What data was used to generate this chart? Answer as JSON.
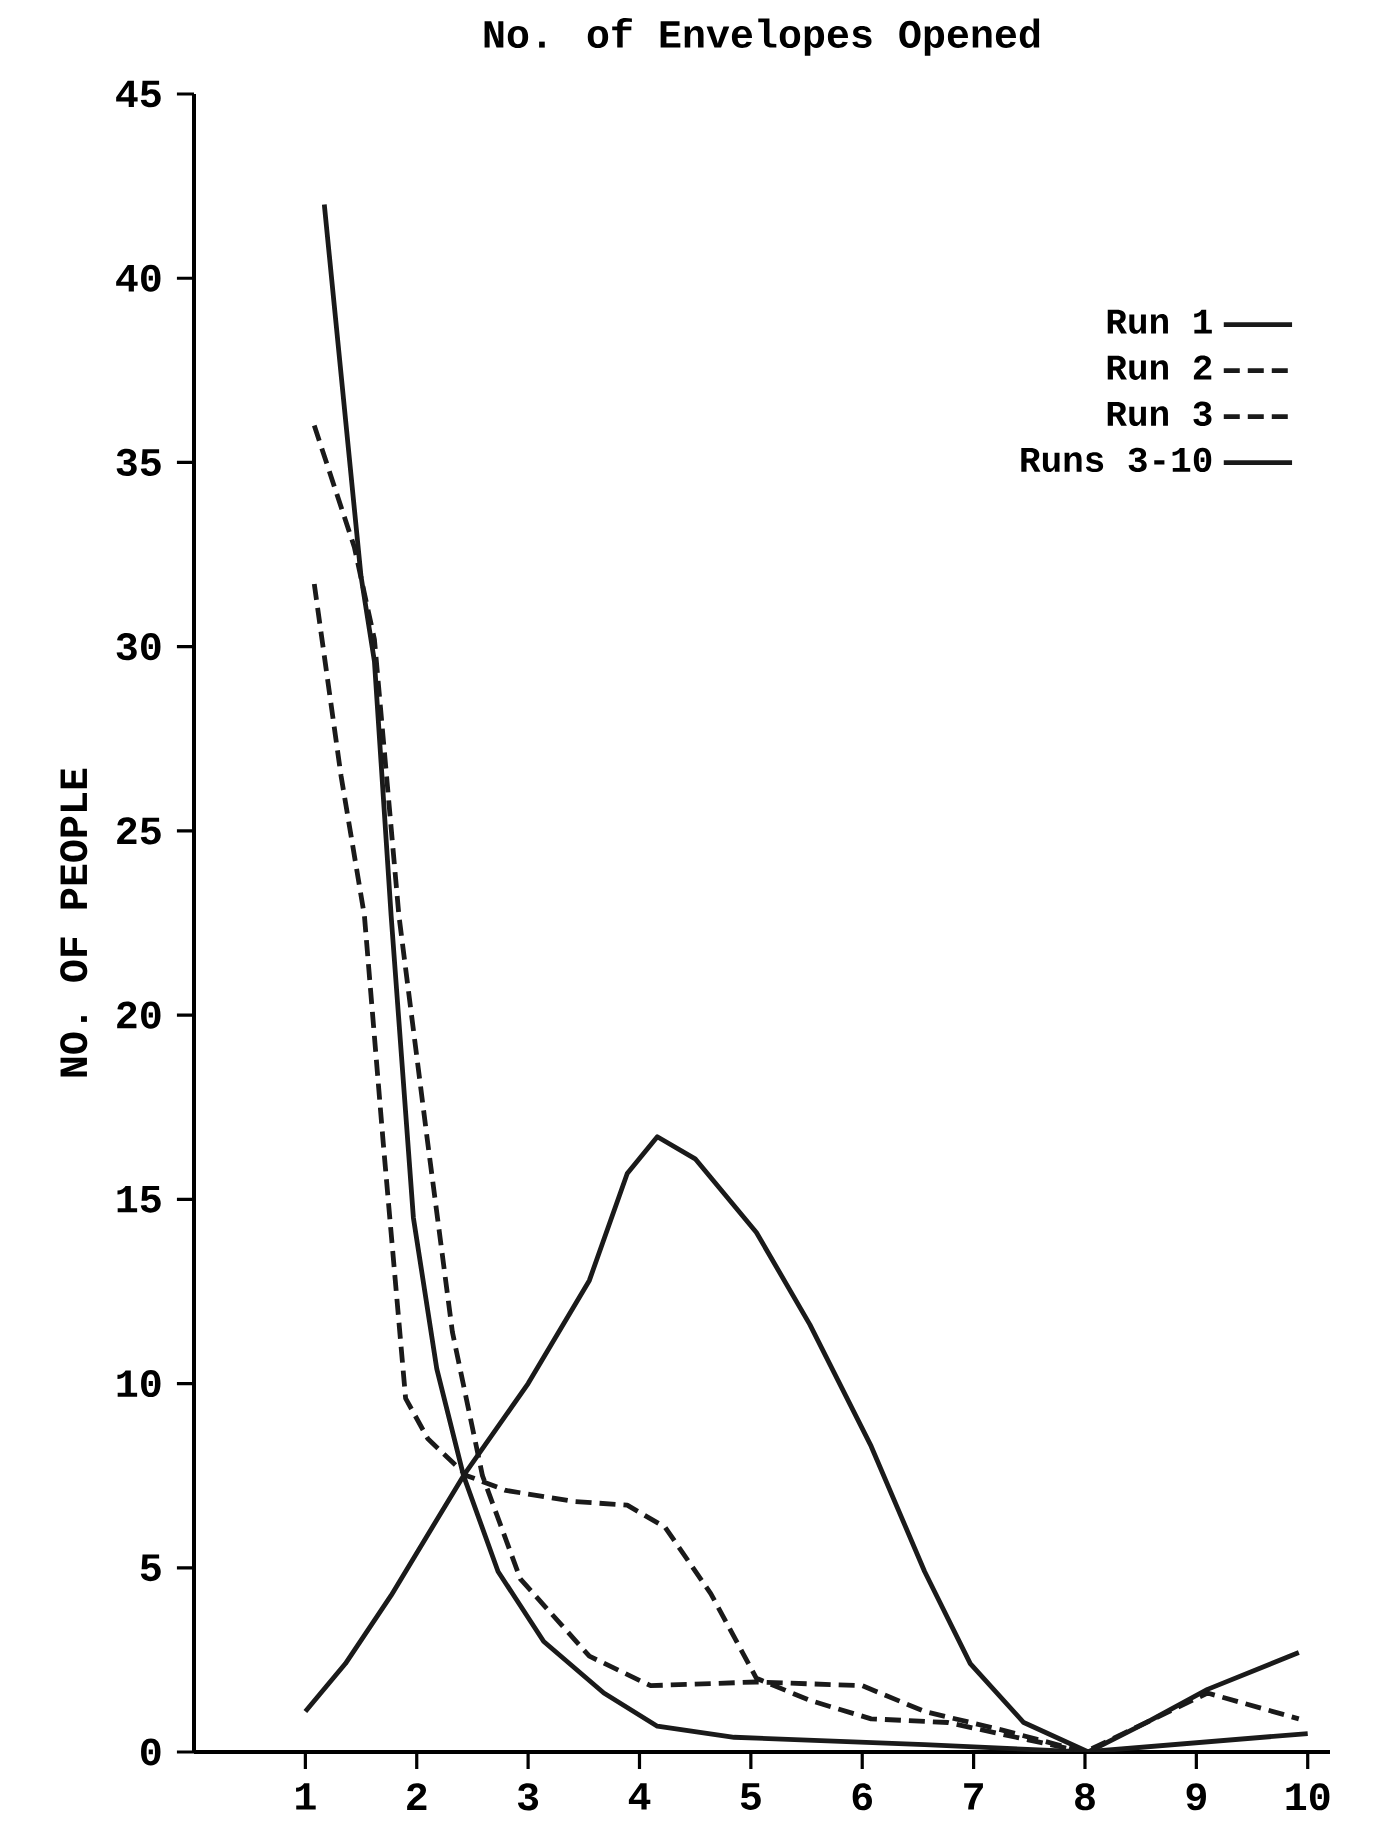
{
  "chart_data": {
    "type": "line",
    "title": "No. of Envelopes Opened",
    "ylabel": "NO. OF PEOPLE",
    "xlim": [
      0,
      10.2
    ],
    "xticks": [
      1,
      2,
      3,
      4,
      5,
      6,
      7,
      8,
      9,
      10
    ],
    "ylim": [
      0,
      45
    ],
    "yticks": [
      0,
      5,
      10,
      15,
      20,
      25,
      30,
      35,
      40,
      45
    ],
    "grid": false,
    "legend": "top right",
    "marker": "none",
    "series": [
      {
        "name": "Run 1",
        "color": "#1a1a1a",
        "line_style": "solid",
        "x": [
          1.17,
          1.5,
          1.62,
          1.77,
          1.97,
          2.18,
          2.42,
          2.73,
          3.14,
          3.68,
          4.16,
          4.85,
          6.56,
          8,
          10
        ],
        "values": [
          42,
          31.9,
          29.6,
          22.7,
          14.5,
          10.4,
          7.5,
          4.9,
          3,
          1.6,
          0.7,
          0.4,
          0.2,
          0,
          0.5
        ]
      },
      {
        "name": "Run 2",
        "color": "#1a1a1a",
        "line_style": "dashed",
        "x": [
          1.08,
          1.44,
          1.62,
          1.84,
          2.1,
          2.32,
          2.59,
          2.93,
          3.55,
          4.1,
          5.05,
          6,
          6.56,
          7.25,
          8,
          9.1,
          9.92
        ],
        "values": [
          36,
          32.7,
          30.2,
          22.7,
          16.5,
          11.4,
          7.5,
          4.7,
          2.6,
          1.8,
          1.9,
          1.8,
          1.1,
          0.6,
          0,
          1.6,
          0.9
        ]
      },
      {
        "name": "Run 3",
        "color": "#1a1a1a",
        "line_style": "dashed",
        "x": [
          1.08,
          1.32,
          1.53,
          1.7,
          1.9,
          2.1,
          2.45,
          2.8,
          3.41,
          3.89,
          4.23,
          4.64,
          5.05,
          5.53,
          6.08,
          6.77,
          7.38,
          8
        ],
        "values": [
          31.7,
          26.5,
          22.7,
          16.5,
          9.6,
          8.5,
          7.5,
          7.1,
          6.8,
          6.7,
          6.1,
          4.3,
          2,
          1.4,
          0.9,
          0.8,
          0.4,
          0
        ]
      },
      {
        "name": "Runs 3-10",
        "color": "#1a1a1a",
        "line_style": "solid",
        "x": [
          1,
          1.36,
          1.77,
          2.42,
          3,
          3.55,
          3.89,
          4.16,
          4.5,
          5.05,
          5.53,
          6.08,
          6.56,
          6.97,
          7.45,
          8.03,
          8.55,
          9.1,
          9.92
        ],
        "values": [
          1.1,
          2.4,
          4.25,
          7.5,
          10,
          12.8,
          15.7,
          16.7,
          16.1,
          14.1,
          11.6,
          8.3,
          4.9,
          2.4,
          0.8,
          0,
          0.8,
          1.7,
          2.7
        ]
      }
    ]
  }
}
